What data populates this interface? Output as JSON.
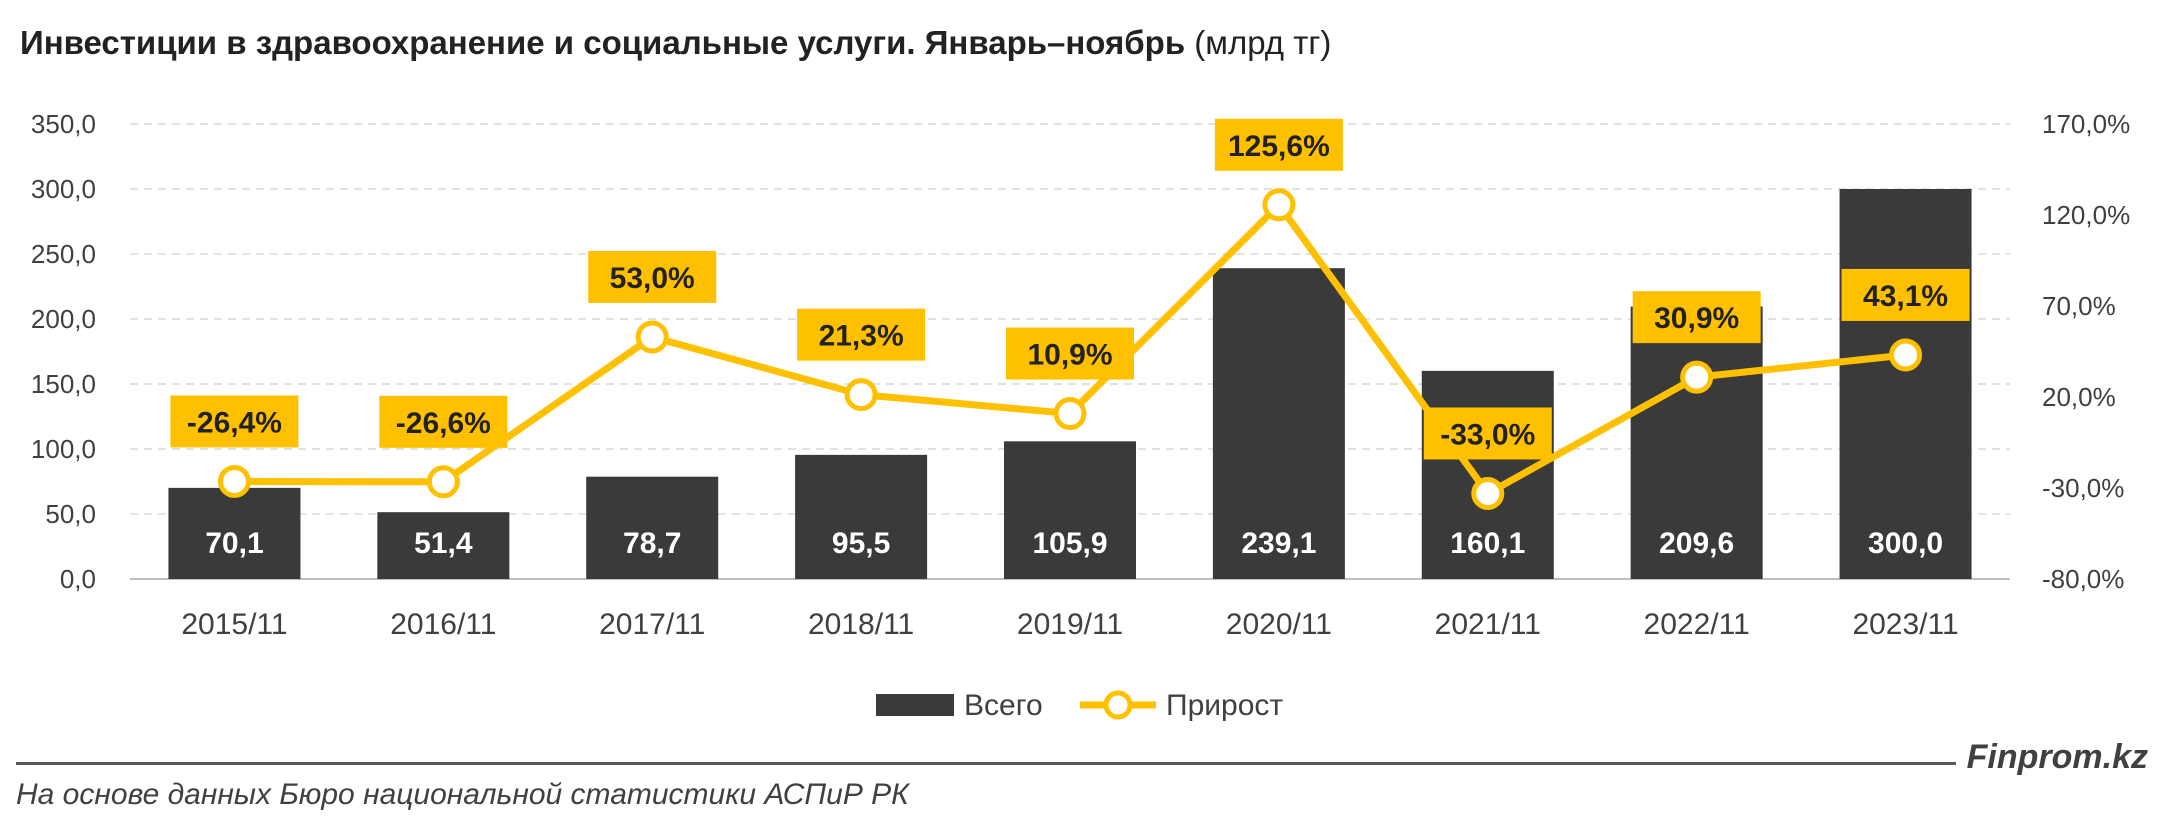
{
  "chart_data": {
    "type": "bar",
    "title": "Инвестиции в здравоохранение и социальные услуги. Январь–ноябрь",
    "unit": "(млрд тг)",
    "categories": [
      "2015/11",
      "2016/11",
      "2017/11",
      "2018/11",
      "2019/11",
      "2020/11",
      "2021/11",
      "2022/11",
      "2023/11"
    ],
    "series": [
      {
        "name": "Всего",
        "type": "bar",
        "axis": "left",
        "values": [
          70.1,
          51.4,
          78.7,
          95.5,
          105.9,
          239.1,
          160.1,
          209.6,
          300.0
        ],
        "labels": [
          "70,1",
          "51,4",
          "78,7",
          "95,5",
          "105,9",
          "239,1",
          "160,1",
          "209,6",
          "300,0"
        ],
        "color": "#3a3a3a"
      },
      {
        "name": "Прирост",
        "type": "line",
        "axis": "right",
        "values": [
          -26.4,
          -26.6,
          53.0,
          21.3,
          10.9,
          125.6,
          -33.0,
          30.9,
          43.1
        ],
        "labels": [
          "-26,4%",
          "-26,6%",
          "53,0%",
          "21,3%",
          "10,9%",
          "125,6%",
          "-33,0%",
          "30,9%",
          "43,1%"
        ],
        "color": "#ffc000"
      }
    ],
    "y_left": {
      "ylim": [
        0,
        350
      ],
      "ticks": [
        0,
        50,
        100,
        150,
        200,
        250,
        300,
        350
      ],
      "tick_labels": [
        "0,0",
        "50,0",
        "100,0",
        "150,0",
        "200,0",
        "250,0",
        "300,0",
        "350,0"
      ]
    },
    "y_right": {
      "ylim": [
        -80,
        170
      ],
      "ticks": [
        -80,
        -30,
        20,
        70,
        120,
        170
      ],
      "tick_labels": [
        "-80,0%",
        "-30,0%",
        "20,0%",
        "70,0%",
        "120,0%",
        "170,0%"
      ]
    },
    "grid": true,
    "legend_position": "bottom-center"
  },
  "source_text": "На основе данных Бюро национальной статистики АСПиР РК",
  "brand": "Finprom.kz"
}
